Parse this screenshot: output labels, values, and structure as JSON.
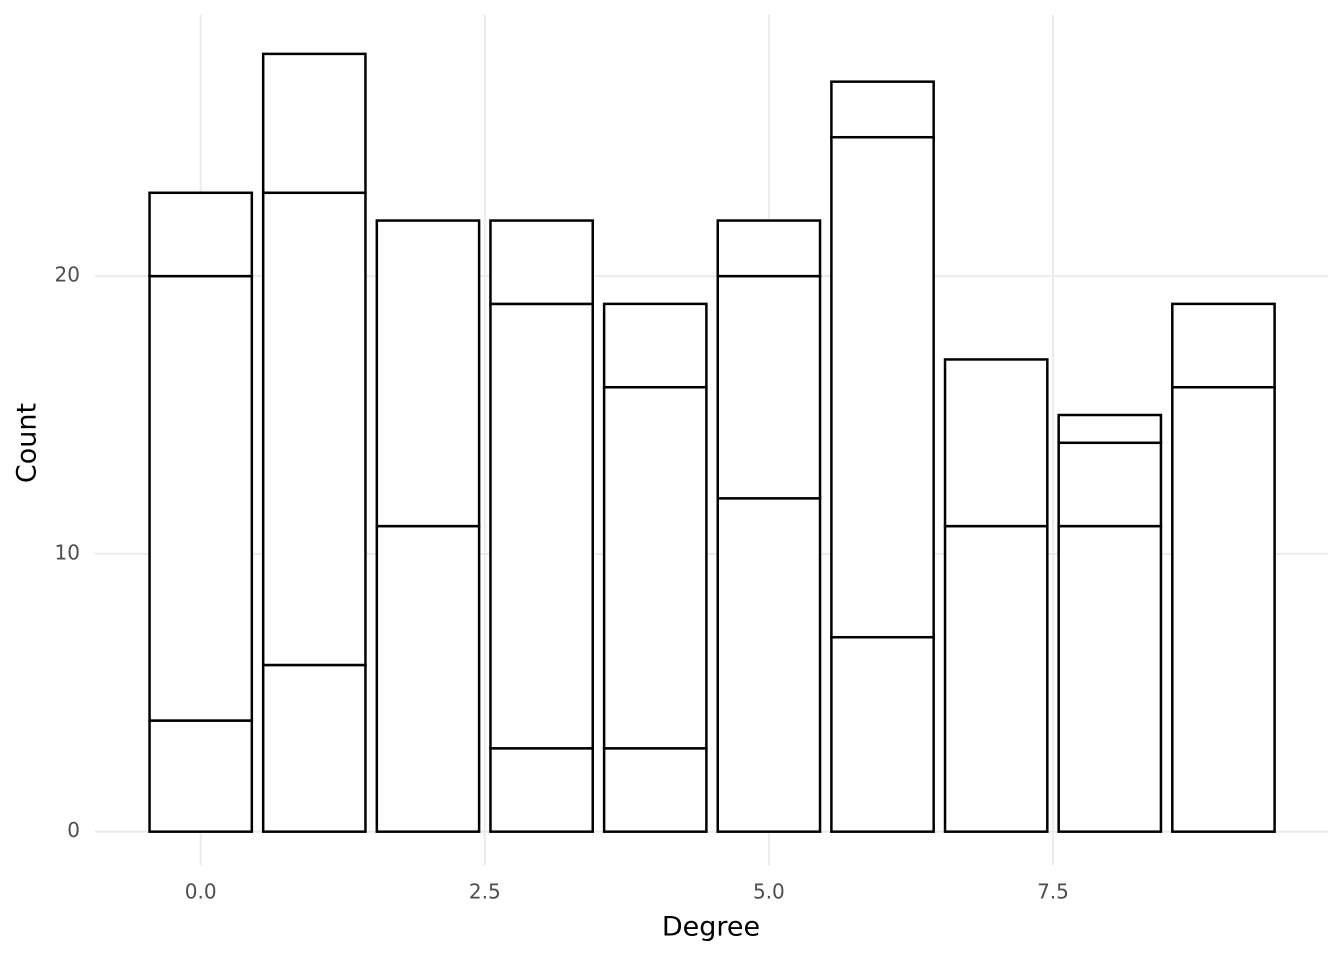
{
  "chart_data": {
    "type": "stacked_bar",
    "x_label": "Degree",
    "y_label": "Count",
    "x": [
      0,
      1,
      2,
      3,
      4,
      5,
      6,
      7,
      8,
      9
    ],
    "series": [
      {
        "color": "#ffffff",
        "values": [
          4,
          6,
          11,
          3,
          3,
          12,
          7,
          11,
          11,
          16
        ]
      },
      {
        "color": "#ffffff",
        "values": [
          16,
          17,
          11,
          16,
          13,
          8,
          18,
          6,
          3,
          3
        ]
      },
      {
        "color": "#ffffff",
        "values": [
          3,
          5,
          null,
          3,
          3,
          2,
          2,
          null,
          1,
          null
        ]
      }
    ],
    "xlim": [
      -0.93,
      9.92
    ],
    "xticks": [
      {
        "value": 0,
        "label": "0.0"
      },
      2.5,
      {
        "value": 5,
        "label": "5.0"
      },
      7.5
    ],
    "ylim": [
      -1.2,
      29.4
    ],
    "yticks": [
      0,
      10,
      20
    ],
    "grid": true
  }
}
